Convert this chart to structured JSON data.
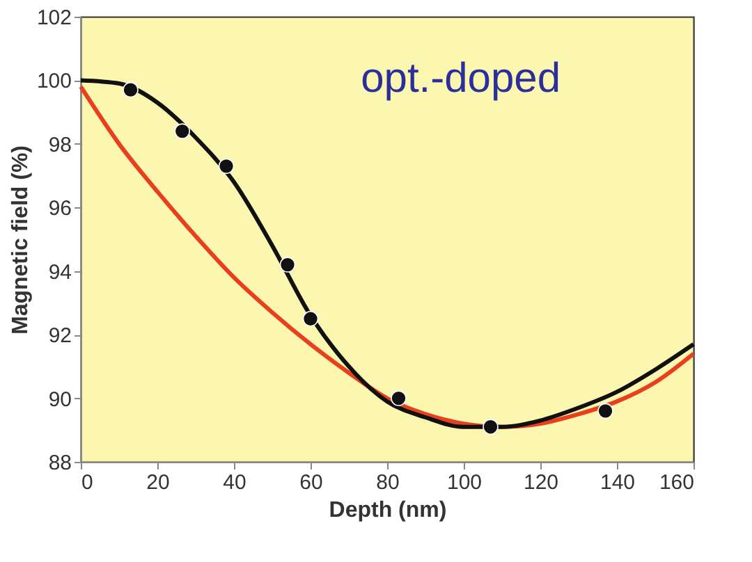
{
  "chart_data": {
    "type": "line",
    "xlabel": "Depth (nm)",
    "ylabel": "Magnetic field (%)",
    "annotations": [
      "opt.-doped"
    ],
    "xlim": [
      0,
      160
    ],
    "xticks": [
      0,
      20,
      40,
      60,
      80,
      100,
      120,
      140,
      160
    ],
    "ylim": [
      88,
      102
    ],
    "yticks": [
      88,
      90,
      92,
      94,
      96,
      98,
      100,
      102
    ],
    "grid": false,
    "series": [
      {
        "color": "#e8401c",
        "x": [
          0,
          10,
          20,
          30,
          40,
          50,
          60,
          70,
          80,
          90,
          100,
          110,
          120,
          130,
          140,
          150,
          160
        ],
        "values": [
          99.8,
          98.0,
          96.5,
          95.1,
          93.8,
          92.7,
          91.7,
          90.8,
          90.0,
          89.5,
          89.2,
          89.1,
          89.2,
          89.5,
          89.9,
          90.5,
          91.4
        ]
      },
      {
        "color": "#111111",
        "x": [
          0,
          10,
          20,
          30,
          40,
          50,
          60,
          70,
          80,
          90,
          100,
          110,
          120,
          130,
          140,
          150,
          160
        ],
        "values": [
          100,
          99.9,
          99.3,
          98.2,
          96.8,
          94.8,
          92.6,
          91.0,
          89.9,
          89.4,
          89.1,
          89.1,
          89.3,
          89.7,
          90.2,
          90.9,
          91.7
        ]
      },
      {
        "type": "scatter",
        "color": "#111111",
        "marker": "circle",
        "x": [
          13,
          26.5,
          38,
          54,
          60,
          83,
          107,
          137
        ],
        "values": [
          99.7,
          98.4,
          97.3,
          94.2,
          92.5,
          90.0,
          89.1,
          89.6
        ]
      }
    ]
  }
}
